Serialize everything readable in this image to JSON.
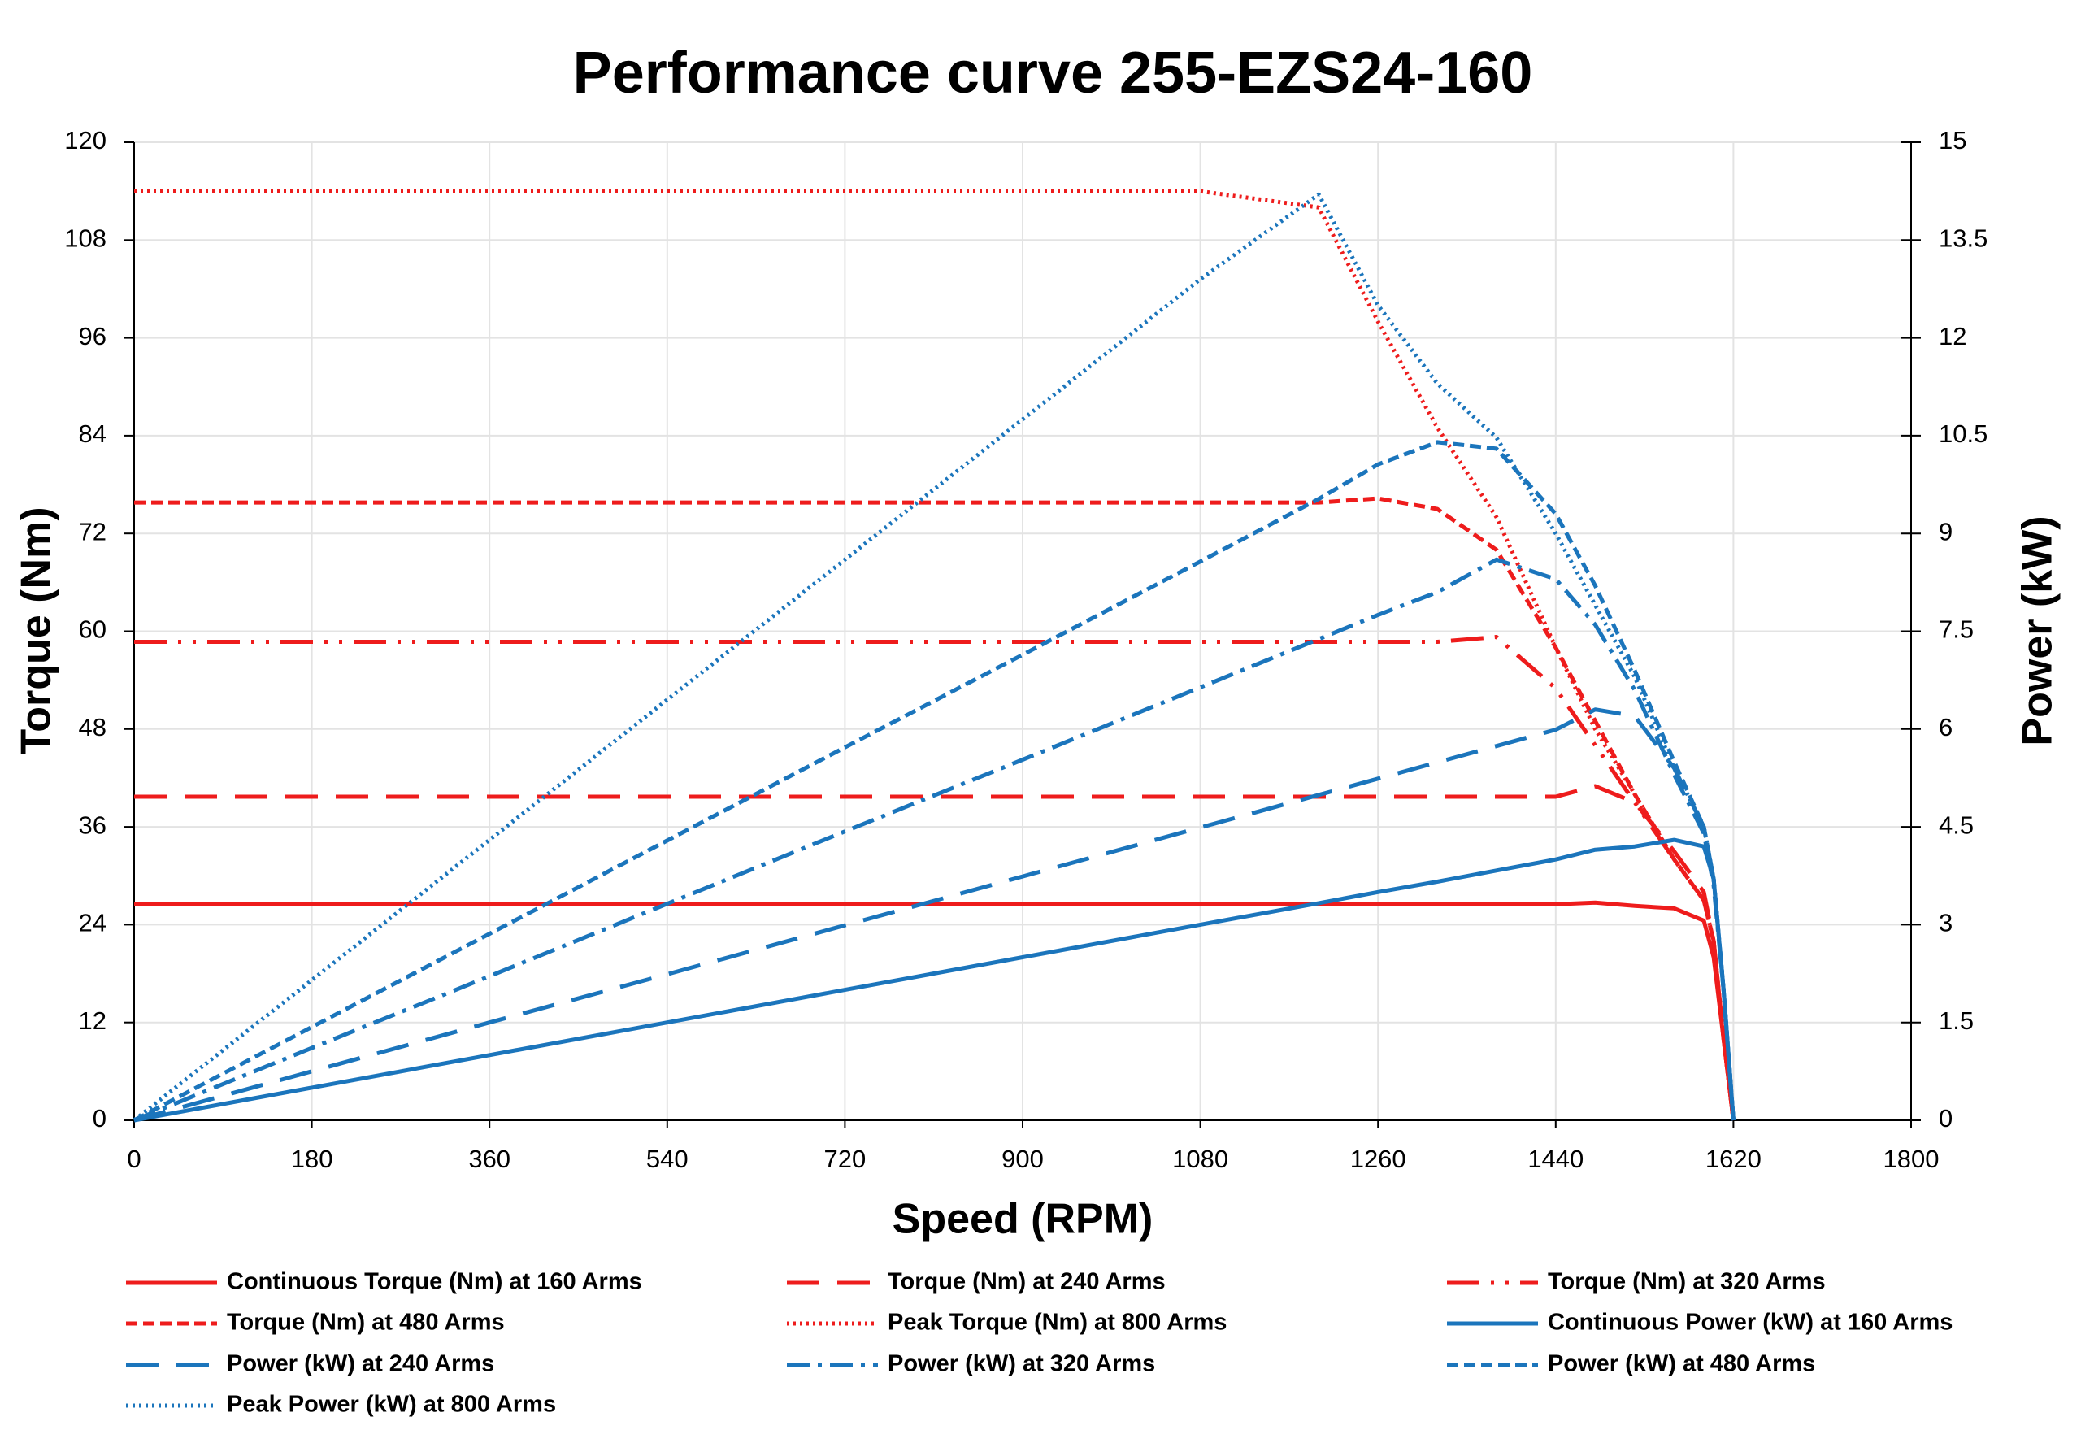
{
  "chart_data": {
    "type": "line",
    "title": "Performance curve 255-EZS24-160",
    "x_label": "Speed (RPM)",
    "y_label": "Torque (Nm)",
    "y2_label": "Power (kW)",
    "x": [
      0,
      180,
      360,
      540,
      720,
      900,
      1080,
      1200,
      1260,
      1320,
      1380,
      1440,
      1480,
      1520,
      1560,
      1590,
      1600,
      1610,
      1620
    ],
    "xlim": [
      0,
      1800
    ],
    "xticks": [
      0,
      180,
      360,
      540,
      720,
      900,
      1080,
      1260,
      1440,
      1620,
      1800
    ],
    "ylim": [
      0,
      120
    ],
    "yticks": [
      0,
      12,
      24,
      36,
      48,
      60,
      72,
      84,
      96,
      108,
      120
    ],
    "y2lim": [
      0,
      15
    ],
    "y2ticks": [
      0,
      1.5,
      3,
      4.5,
      6,
      7.5,
      9,
      10.5,
      12,
      13.5,
      15
    ],
    "grid": true,
    "legend": "bottom",
    "series": [
      {
        "name": "Continuous Torque (Nm) at 160 Arms",
        "color": "#ee1c1c",
        "dash": "solid",
        "values": [
          26.5,
          26.5,
          26.5,
          26.5,
          26.5,
          26.5,
          26.5,
          26.5,
          26.5,
          26.5,
          26.5,
          26.5,
          26.7,
          26.3,
          26,
          24.5,
          20,
          10,
          0
        ]
      },
      {
        "name": "Torque (Nm) at 240 Arms",
        "color": "#ee1c1c",
        "dash": "long-dash",
        "values": [
          39.7,
          39.7,
          39.7,
          39.7,
          39.7,
          39.7,
          39.7,
          39.7,
          39.7,
          39.7,
          39.7,
          39.7,
          41,
          39,
          33,
          28,
          22,
          10,
          0
        ]
      },
      {
        "name": "Torque (Nm) at 320 Arms",
        "color": "#ee1c1c",
        "dash": "dash-dot-dot",
        "values": [
          58.7,
          58.7,
          58.7,
          58.7,
          58.7,
          58.7,
          58.7,
          58.7,
          58.7,
          58.7,
          59.3,
          53,
          46,
          39,
          32,
          27,
          22,
          10,
          0
        ]
      },
      {
        "name": "Torque (Nm) at 480 Arms",
        "color": "#ee1c1c",
        "dash": "dash",
        "values": [
          75.8,
          75.8,
          75.8,
          75.8,
          75.8,
          75.8,
          75.8,
          75.8,
          76.3,
          75,
          70,
          58,
          49,
          40,
          32,
          27,
          22,
          10,
          0
        ]
      },
      {
        "name": "Peak Torque (Nm) at 800 Arms",
        "color": "#ee1c1c",
        "dash": "dot",
        "values": [
          114,
          114,
          114,
          114,
          114,
          114,
          114,
          112,
          98,
          85,
          74,
          58,
          48,
          40,
          32,
          27,
          22,
          10,
          0
        ]
      },
      {
        "name": "Continuous Power (kW) at 160 Arms",
        "color": "#1b75bc",
        "dash": "solid",
        "axis": "y2",
        "values": [
          0,
          0.5,
          1,
          1.5,
          2,
          2.5,
          3,
          3.33,
          3.5,
          3.66,
          3.83,
          4.0,
          4.15,
          4.2,
          4.3,
          4.2,
          3.7,
          2.0,
          0
        ]
      },
      {
        "name": "Power (kW) at 240 Arms",
        "color": "#1b75bc",
        "dash": "long-dash",
        "axis": "y2",
        "values": [
          0,
          0.75,
          1.5,
          2.24,
          2.99,
          3.74,
          4.49,
          4.99,
          5.24,
          5.49,
          5.74,
          5.99,
          6.3,
          6.2,
          5.4,
          4.5,
          3.7,
          2.0,
          0
        ]
      },
      {
        "name": "Power (kW) at 320 Arms",
        "color": "#1b75bc",
        "dash": "dash-dot",
        "axis": "y2",
        "values": [
          0,
          1.11,
          2.21,
          3.32,
          4.43,
          5.53,
          6.64,
          7.38,
          7.75,
          8.1,
          8.6,
          8.3,
          7.6,
          6.6,
          5.3,
          4.4,
          3.6,
          2.0,
          0
        ]
      },
      {
        "name": "Power (kW) at 480 Arms",
        "color": "#1b75bc",
        "dash": "dash",
        "axis": "y2",
        "values": [
          0,
          1.43,
          2.86,
          4.29,
          5.72,
          7.14,
          8.57,
          9.53,
          10.06,
          10.4,
          10.3,
          9.3,
          8.2,
          6.9,
          5.5,
          4.5,
          3.7,
          2.0,
          0
        ]
      },
      {
        "name": "Peak Power (kW) at 800 Arms",
        "color": "#1b75bc",
        "dash": "dot",
        "axis": "y2",
        "values": [
          0,
          2.15,
          4.3,
          6.45,
          8.6,
          10.75,
          12.9,
          14.2,
          12.5,
          11.3,
          10.47,
          9.0,
          7.9,
          6.8,
          5.4,
          4.5,
          3.7,
          2.0,
          0
        ]
      }
    ]
  }
}
